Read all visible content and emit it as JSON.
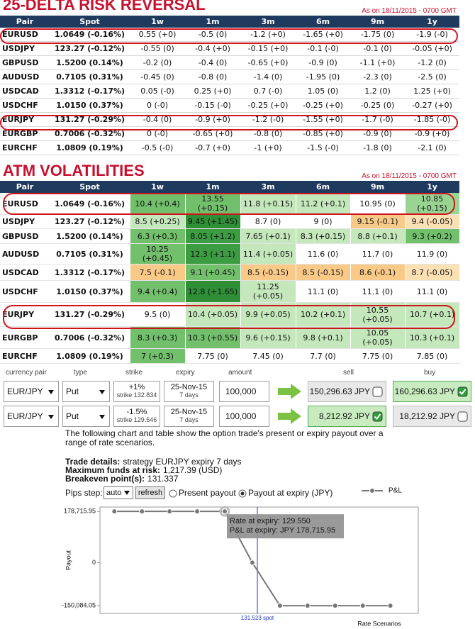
{
  "risk_reversal": {
    "title": "25-DELTA RISK REVERSAL",
    "as_of": "As on 18/11/2015 - 0700 GMT",
    "header": [
      "Pair",
      "Spot",
      "1w",
      "1m",
      "3m",
      "6m",
      "9m",
      "1y"
    ],
    "rows": [
      [
        "EURUSD",
        "1.0649 (-0.16%)",
        "0.55 (+0)",
        "-0.5 (0)",
        "-1.2 (+0)",
        "-1.65 (+0)",
        "-1.75 (0)",
        "-1.9 (-0)"
      ],
      [
        "USDJPY",
        "123.27 (-0.12%)",
        "-0.55 (0)",
        "-0.4 (+0)",
        "-0.15 (+0)",
        "-0.1 (-0)",
        "-0.1 (0)",
        "-0.05 (+0)"
      ],
      [
        "GBPUSD",
        "1.5200 (0.14%)",
        "-0.2 (0)",
        "-0.4 (0)",
        "-0.65 (+0)",
        "-0.9 (0)",
        "-1.1 (+0)",
        "-1.2 (0)"
      ],
      [
        "AUDUSD",
        "0.7105 (0.31%)",
        "-0.45 (0)",
        "-0.8 (0)",
        "-1.4 (0)",
        "-1.95 (0)",
        "-2.3 (0)",
        "-2.5 (0)"
      ],
      [
        "USDCAD",
        "1.3312 (-0.17%)",
        "0.05 (-0)",
        "0.25 (+0)",
        "0.7 (-0)",
        "1.05 (0)",
        "1.2 (0)",
        "1.25 (+0)"
      ],
      [
        "USDCHF",
        "1.0150 (0.37%)",
        "0 (-0)",
        "-0.15 (-0)",
        "-0.25 (+0)",
        "-0.25 (+0)",
        "-0.25 (0)",
        "-0.27 (+0)"
      ],
      [
        "EURJPY",
        "131.27 (-0.29%)",
        "-0.4 (0)",
        "-0.9 (+0)",
        "-1.2 (-0)",
        "-1.55 (+0)",
        "-1.7 (-0)",
        "-1.85 (-0)"
      ],
      [
        "EURGBP",
        "0.7006 (-0.32%)",
        "0 (-0)",
        "-0.65 (+0)",
        "-0.8 (0)",
        "-0.85 (+0)",
        "-0.9 (0)",
        "-0.9 (+0)"
      ],
      [
        "EURCHF",
        "1.0809 (0.19%)",
        "-0.5 (-0)",
        "-0.7 (+0)",
        "-1 (+0)",
        "-1.5 (-0)",
        "-1.8 (0)",
        "-2.1 (0)"
      ]
    ]
  },
  "atm_volatilities": {
    "title": "ATM VOLATILITIES",
    "as_of": "As on 18/11/2015 - 0700 GMT",
    "header": [
      "Pair",
      "Spot",
      "1w",
      "1m",
      "3m",
      "6m",
      "9m",
      "1y"
    ],
    "rows": [
      [
        "EURUSD",
        "1.0649 (-0.16%)",
        "10.4 (+0.4)",
        "13.55 (+0.15)",
        "11.8 (+0.15)",
        "11.2 (+0.1)",
        "10.95 (0)",
        "10.85 (+0.15)"
      ],
      [
        "USDJPY",
        "123.27 (-0.12%)",
        "8.5 (+0.25)",
        "9.45 (+1.45)",
        "8.7 (0)",
        "9 (0)",
        "9.15 (-0.1)",
        "9.4 (-0.05)"
      ],
      [
        "GBPUSD",
        "1.5200 (0.14%)",
        "6.3 (+0.3)",
        "8.05 (+1.2)",
        "7.65 (+0.1)",
        "8.3 (+0.15)",
        "8.8 (+0.1)",
        "9.3 (+0.2)"
      ],
      [
        "AUDUSD",
        "0.7105 (0.31%)",
        "10.25 (+0.45)",
        "12.3 (+1.1)",
        "11.4 (+0.05)",
        "11.6 (0)",
        "11.7 (0)",
        "11.9 (0)"
      ],
      [
        "USDCAD",
        "1.3312 (-0.17%)",
        "7.5 (-0.1)",
        "9.1 (+0.45)",
        "8.5 (-0.15)",
        "8.5 (-0.15)",
        "8.6 (-0.1)",
        "8.7 (-0.05)"
      ],
      [
        "USDCHF",
        "1.0150 (0.37%)",
        "9.4 (+0.4)",
        "12.8 (+1.65)",
        "11.25 (+0.05)",
        "11.1 (0)",
        "11.1 (0)",
        "11.1 (0)"
      ],
      [
        "EURJPY",
        "131.27 (-0.29%)",
        "9.5 (0)",
        "10.4 (+0.05)",
        "9.9 (+0.05)",
        "10.2 (+0.1)",
        "10.55 (+0.05)",
        "10.7 (+0.1)"
      ],
      [
        "EURGBP",
        "0.7006 (-0.32%)",
        "8.3 (+0.3)",
        "10.3 (+0.55)",
        "9.6 (+0.15)",
        "9.8 (+0.1)",
        "10.05 (+0.05)",
        "10.3 (+0.1)"
      ],
      [
        "EURCHF",
        "1.0809 (0.19%)",
        "7 (+0.3)",
        "7.75 (0)",
        "7.45 (0)",
        "7.7 (0)",
        "7.75 (0)",
        "7.85 (0)"
      ]
    ],
    "cell_colors": [
      [
        "#72c06c",
        "#72c06c",
        "#c4e7bb",
        "#c4e7bb",
        "#ffffff",
        "#9ad493"
      ],
      [
        "#c4e7bb",
        "#2f8f36",
        "#ffffff",
        "#ffffff",
        "#f9c987",
        "#fbe0b4"
      ],
      [
        "#72c06c",
        "#3c9c42",
        "#c4e7bb",
        "#c4e7bb",
        "#c4e7bb",
        "#72c06c"
      ],
      [
        "#72c06c",
        "#3c9c42",
        "#c4e7bb",
        "#ffffff",
        "#ffffff",
        "#ffffff"
      ],
      [
        "#f9c987",
        "#72c06c",
        "#f9c987",
        "#f9c987",
        "#f9c987",
        "#fbe0b4"
      ],
      [
        "#72c06c",
        "#2f8f36",
        "#c4e7bb",
        "#ffffff",
        "#ffffff",
        "#ffffff"
      ],
      [
        "#ffffff",
        "#c4e7bb",
        "#c4e7bb",
        "#c4e7bb",
        "#c4e7bb",
        "#c4e7bb"
      ],
      [
        "#72c06c",
        "#72c06c",
        "#c4e7bb",
        "#c4e7bb",
        "#c4e7bb",
        "#c4e7bb"
      ],
      [
        "#72c06c",
        "#ffffff",
        "#ffffff",
        "#ffffff",
        "#ffffff",
        "#ffffff"
      ]
    ]
  },
  "trade_form": {
    "header": [
      "currency pair",
      "type",
      "strike",
      "expiry",
      "amount",
      "sell",
      "buy"
    ],
    "rows": [
      {
        "pair": "EUR/JPY",
        "type": "Put",
        "strike": "+1%",
        "strike_detail": "strike 132.834",
        "expiry": "25-Nov-15",
        "expiry_detail": "7 days",
        "amount": "100,000",
        "sell": "150,296.63 JPY",
        "sell_checked": false,
        "buy": "160,296.63 JPY",
        "buy_checked": true
      },
      {
        "pair": "EUR/JPY",
        "type": "Put",
        "strike": "-1.5%",
        "strike_detail": "strike 129.546",
        "expiry": "25-Nov-15",
        "expiry_detail": "7 days",
        "amount": "100,000",
        "sell": "8,212.92 JPY",
        "sell_checked": true,
        "buy": "18,212.92 JPY",
        "buy_checked": false
      }
    ]
  },
  "description": "The following chart and table show the option trade's present or expiry payout over a range of rate scenarios.",
  "trade_details": [
    {
      "label": "Trade details:",
      "text": "strategy EURJPY expiry 7 days"
    },
    {
      "label": "Maximum funds at risk:",
      "text": "1,217.39 (USD)"
    },
    {
      "label": "Breakeven point(s):",
      "text": "131.337"
    }
  ],
  "controls": {
    "pips_label": "Pips step:",
    "pips_value": "auto",
    "refresh": "refresh",
    "options": [
      "Present payout",
      "Payout at expiry (JPY)"
    ],
    "selected_option": 1
  },
  "chart_data": {
    "type": "line",
    "x_label": "Rate Scenarios",
    "y_label": "Payout",
    "x": [
      122.87,
      124.54,
      126.21,
      127.88,
      129.55,
      131.22,
      132.89,
      134.56,
      136.23,
      137.9,
      139.57
    ],
    "series": [
      {
        "name": "P&L",
        "color": "#777777",
        "values": [
          178715.95,
          178715.95,
          178715.95,
          178715.95,
          178715.95,
          0,
          -150084.05,
          -150084.05,
          -150084.05,
          -150084.05,
          -150084.05
        ]
      }
    ],
    "xlim": [
      122.0,
      141.26
    ],
    "ylim": [
      -177000,
      194000
    ],
    "yticks": [
      {
        "value": 178715.95,
        "label": "178,715.95"
      },
      0,
      {
        "value": -150084.05,
        "label": "-150,084.05"
      }
    ],
    "spot": {
      "value": 131.523,
      "label": "131.523 spot",
      "color": "#2233cc"
    },
    "tooltip": [
      "Rate at expiry: 129.550",
      "P&L at expiry: JPY 178,715.95"
    ]
  }
}
